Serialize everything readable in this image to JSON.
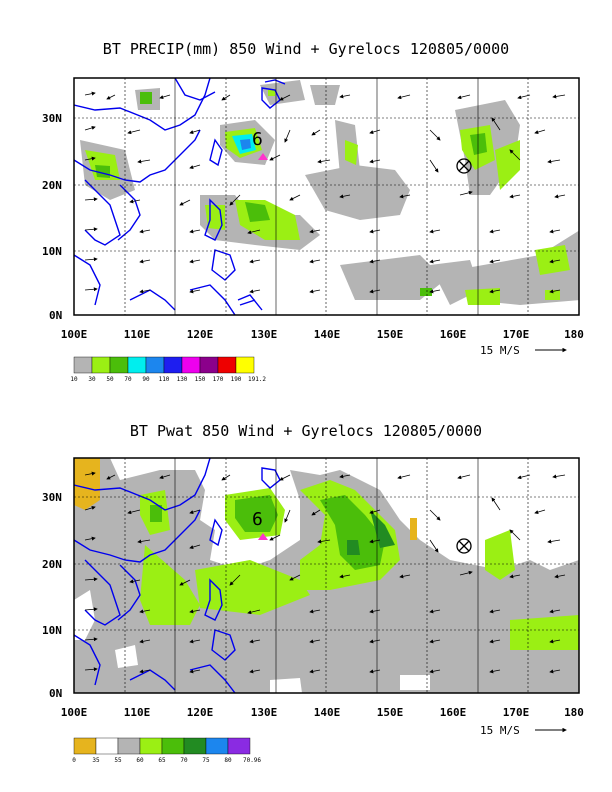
{
  "panels": [
    {
      "title": "BT PRECIP(mm) 850 Wind + Gyrelocs 120805/0000",
      "x_ticks": [
        "100E",
        "110E",
        "120E",
        "130E",
        "140E",
        "150E",
        "160E",
        "170E",
        "180"
      ],
      "y_ticks": [
        "0N",
        "10N",
        "20N",
        "30N"
      ],
      "vector_ref": "15 M/S",
      "legend": {
        "labels": [
          "10",
          "30",
          "50",
          "70",
          "90",
          "110",
          "130",
          "150",
          "170",
          "190",
          "191.2"
        ],
        "colors": [
          "#b4b4b4",
          "#9bef14",
          "#4bbe0a",
          "#00eeee",
          "#1c86ee",
          "#1e1ef0",
          "#ee00ee",
          "#8b008b",
          "#ee0000",
          "#ffff00"
        ]
      }
    },
    {
      "title": "BT Pwat 850 Wind + Gyrelocs 120805/0000",
      "x_ticks": [
        "100E",
        "110E",
        "120E",
        "130E",
        "140E",
        "150E",
        "160E",
        "170E",
        "180"
      ],
      "y_ticks": [
        "0N",
        "10N",
        "20N",
        "30N"
      ],
      "vector_ref": "15 M/S",
      "legend": {
        "labels": [
          "0",
          "35",
          "55",
          "60",
          "65",
          "70",
          "75",
          "80",
          "70.96"
        ],
        "colors": [
          "#e6b41e",
          "#ffffff",
          "#b4b4b4",
          "#9bef14",
          "#4bbe0a",
          "#228b22",
          "#1c86ee",
          "#8a2be2"
        ]
      }
    }
  ],
  "markers": {
    "storm_symbol": "6",
    "gyre_symbol": "⊗"
  },
  "colors": {
    "coast": "#0000ee",
    "land_shade": "#b4b4b4",
    "marker": "#ff33cc"
  }
}
